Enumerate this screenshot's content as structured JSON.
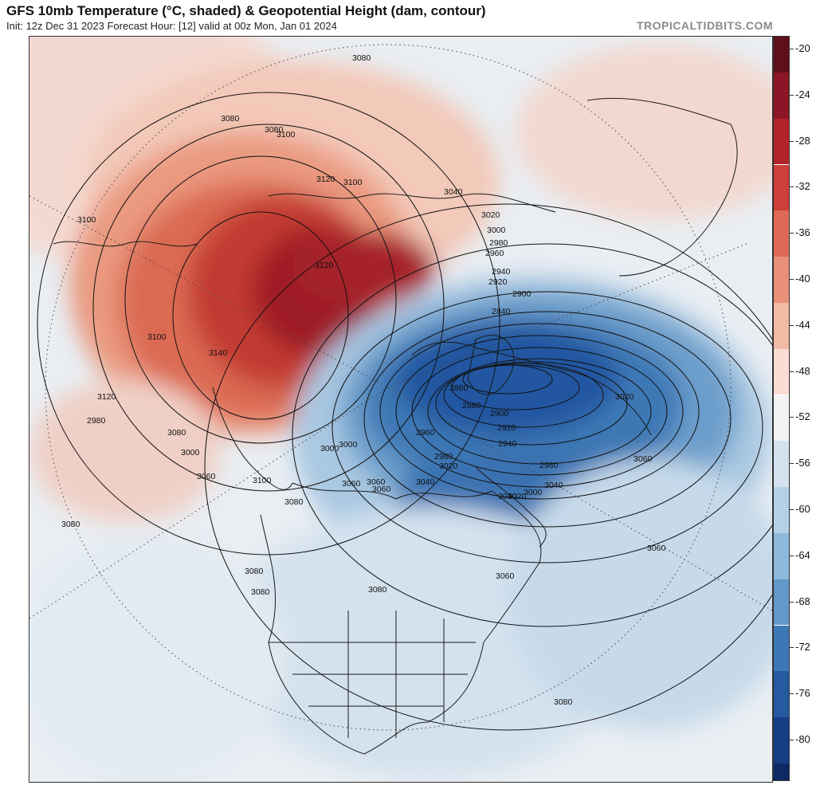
{
  "header": {
    "title": "GFS 10mb Temperature (°C, shaded) & Geopotential Height (dam, contour)",
    "subtitle": "Init: 12z Dec 31 2023   Forecast Hour: [12]   valid at 00z Mon, Jan 01 2024",
    "brand": "TROPICALTIDBITS.COM"
  },
  "colorbar": {
    "labels": [
      "-20",
      "-24",
      "-28",
      "-32",
      "-36",
      "-40",
      "-44",
      "-48",
      "-52",
      "-56",
      "-60",
      "-64",
      "-68",
      "-72",
      "-76",
      "-80"
    ],
    "colors": [
      "#5e0f1b",
      "#8c1627",
      "#b3232c",
      "#cd3f39",
      "#de6a55",
      "#e99078",
      "#f2b9a5",
      "#faddd3",
      "#f2f3f5",
      "#d3e2ee",
      "#b5d1e6",
      "#8fb9da",
      "#6399c9",
      "#3d78b6",
      "#255aa0",
      "#173e85",
      "#0d2a66"
    ]
  },
  "map": {
    "contour_labels": [
      "3080",
      "3100",
      "3120",
      "3080",
      "3100",
      "3120",
      "3140",
      "3060",
      "3040",
      "3020",
      "3000",
      "2980",
      "2960",
      "2940",
      "2920",
      "2900",
      "2840",
      "2860",
      "2880",
      "2900",
      "2920",
      "2940",
      "2960",
      "2980",
      "3000",
      "3020",
      "3040",
      "3060",
      "3080",
      "3100",
      "3080",
      "3080",
      "3080",
      "3080",
      "3060",
      "3060",
      "3060",
      "3040",
      "3020",
      "3000",
      "2980",
      "3080",
      "3100",
      "3120",
      "3080",
      "3060",
      "3040",
      "3060",
      "3020",
      "2980",
      "3000",
      "3000",
      "3100",
      "3080"
    ],
    "legend_caption": ""
  }
}
